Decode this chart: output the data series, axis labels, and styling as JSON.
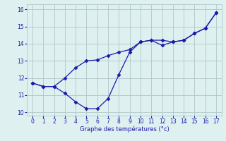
{
  "x": [
    0,
    1,
    2,
    3,
    4,
    5,
    6,
    7,
    8,
    9,
    10,
    11,
    12,
    13,
    14,
    15,
    16,
    17
  ],
  "line1": [
    11.7,
    11.5,
    11.5,
    11.1,
    10.6,
    10.2,
    10.2,
    10.8,
    12.2,
    13.5,
    14.1,
    14.2,
    13.9,
    14.1,
    14.2,
    14.6,
    14.9,
    15.8
  ],
  "line2": [
    11.7,
    11.5,
    11.5,
    12.0,
    12.6,
    13.0,
    13.05,
    13.3,
    13.5,
    13.65,
    14.1,
    14.2,
    14.2,
    14.1,
    14.2,
    14.6,
    14.9,
    15.8
  ],
  "line_color": "#1a1aaa",
  "bg_color": "#dff0f0",
  "grid_color": "#b0c8c8",
  "xlabel": "Graphe des températures (°c)",
  "xlim": [
    -0.5,
    17.5
  ],
  "ylim": [
    9.8,
    16.3
  ],
  "yticks": [
    10,
    11,
    12,
    13,
    14,
    15,
    16
  ],
  "xticks": [
    0,
    1,
    2,
    3,
    4,
    5,
    6,
    7,
    8,
    9,
    10,
    11,
    12,
    13,
    14,
    15,
    16,
    17
  ]
}
